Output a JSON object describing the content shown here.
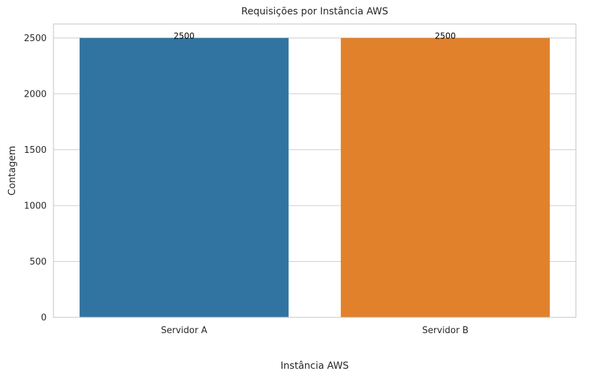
{
  "chart_data": {
    "type": "bar",
    "title": "Requisições por Instância AWS",
    "xlabel": "Instância AWS",
    "ylabel": "Contagem",
    "categories": [
      "Servidor A",
      "Servidor B"
    ],
    "values": [
      2500,
      2500
    ],
    "data_labels": [
      "2500",
      "2500"
    ],
    "colors": [
      "#3274a1",
      "#e1812c"
    ],
    "ylim": [
      0,
      2625
    ],
    "yticks": [
      0,
      500,
      1000,
      1500,
      2000,
      2500
    ],
    "ytick_labels": [
      "0",
      "500",
      "1000",
      "1500",
      "2000",
      "2500"
    ],
    "grid": true,
    "grid_axis": "y"
  }
}
